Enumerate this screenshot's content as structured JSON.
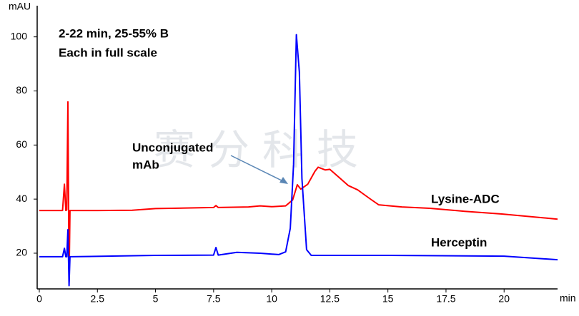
{
  "chart_data": {
    "type": "line",
    "y_label": "mAU",
    "x_label": "min",
    "annotations": [
      "2-22 min, 25-55% B",
      "Each in full scale",
      "Unconjugated",
      "mAb"
    ],
    "watermark": "赛分科技",
    "xlim": [
      0,
      22.3
    ],
    "ylim": [
      6.8,
      110.2
    ],
    "xticks": [
      0,
      2.5,
      5,
      7.5,
      10,
      12.5,
      15,
      17.5,
      20
    ],
    "yticks": [
      20,
      40,
      60,
      80,
      100
    ],
    "series": [
      {
        "name": "Lysine-ADC",
        "color": "#ff0000",
        "x": [
          0,
          1.0,
          1.08,
          1.14,
          1.18,
          1.23,
          1.28,
          1.32,
          1.4,
          2.5,
          4,
          5,
          7.5,
          7.6,
          7.7,
          9,
          9.5,
          10,
          10.6,
          10.9,
          11.1,
          11.25,
          11.55,
          11.86,
          12.0,
          12.3,
          12.5,
          12.9,
          13.3,
          13.7,
          14.2,
          14.6,
          15.6,
          16.8,
          18.3,
          19.9,
          22.3
        ],
        "values": [
          35.8,
          35.8,
          45.5,
          35.8,
          36,
          76,
          9.5,
          35.8,
          35.8,
          35.8,
          35.9,
          36.5,
          36.9,
          37.6,
          36.9,
          37.1,
          37.5,
          37.2,
          37.5,
          39.7,
          45.3,
          43.7,
          45.5,
          50.3,
          51.8,
          50.8,
          51,
          48,
          45,
          43.4,
          40.3,
          37.9,
          37.1,
          36.6,
          35.5,
          34.5,
          32.6
        ]
      },
      {
        "name": "Herceptin",
        "color": "#0000ff",
        "x": [
          0,
          1.0,
          1.08,
          1.14,
          1.18,
          1.23,
          1.28,
          1.32,
          1.4,
          5,
          7.5,
          7.6,
          7.7,
          8.5,
          9.5,
          10.3,
          10.6,
          10.8,
          10.94,
          11.06,
          11.19,
          11.3,
          11.5,
          11.7,
          15,
          20,
          22.3
        ],
        "values": [
          18.7,
          18.7,
          21.8,
          18.7,
          18.7,
          28.7,
          8,
          18.7,
          18.7,
          19.2,
          19.3,
          22.1,
          19.3,
          20.3,
          20,
          19.5,
          20.5,
          29.2,
          52.9,
          100.8,
          87,
          47.6,
          21.3,
          19.2,
          19.2,
          18.9,
          17.6
        ]
      }
    ]
  }
}
